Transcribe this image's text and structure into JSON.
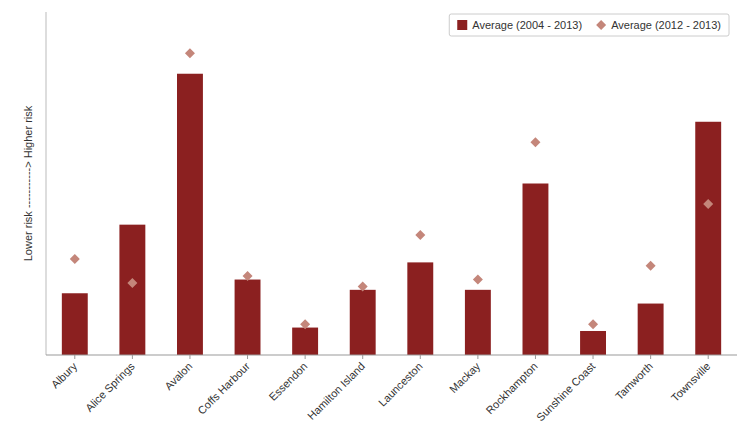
{
  "chart_data": {
    "type": "bar",
    "categories": [
      "Albury",
      "Alice Springs",
      "Avalon",
      "Coffs Harbour",
      "Essendon",
      "Hamilton Island",
      "Launceston",
      "Mackay",
      "Rockhampton",
      "Sunshine Coast",
      "Tamworth",
      "Townsville"
    ],
    "series": [
      {
        "name": "Average (2004 - 2013)",
        "type": "bar",
        "color": "#8B2020",
        "values": [
          0.18,
          0.38,
          0.82,
          0.22,
          0.08,
          0.19,
          0.27,
          0.19,
          0.5,
          0.07,
          0.15,
          0.68
        ]
      },
      {
        "name": "Average (2012 - 2013)",
        "type": "scatter",
        "marker": "diamond",
        "color": "#C4867A",
        "values": [
          0.28,
          0.21,
          0.88,
          0.23,
          0.09,
          0.2,
          0.35,
          0.22,
          0.62,
          0.09,
          0.26,
          0.44
        ]
      }
    ],
    "ylabel": "Lower risk -----------> Higher risk",
    "ylim": [
      0,
      1.0
    ],
    "grid": false,
    "tick_labels": "x",
    "legend": "upper right"
  }
}
